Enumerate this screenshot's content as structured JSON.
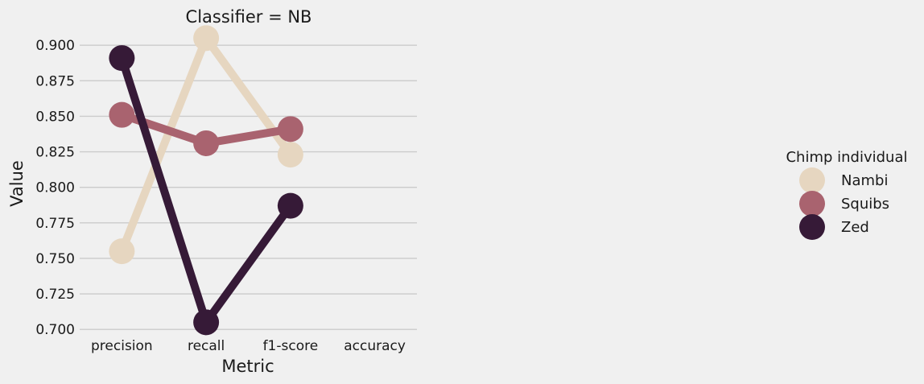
{
  "chart_data": {
    "type": "line",
    "title": "Classifier = NB",
    "xlabel": "Metric",
    "ylabel": "Value",
    "categories": [
      "precision",
      "recall",
      "f1-score",
      "accuracy"
    ],
    "ylim": [
      0.695,
      0.912
    ],
    "yticks": [
      "0.700",
      "0.725",
      "0.750",
      "0.775",
      "0.800",
      "0.825",
      "0.850",
      "0.875",
      "0.900"
    ],
    "grid": true,
    "legend": {
      "title": "Chimp individual",
      "position": "right"
    },
    "series": [
      {
        "name": "Nambi",
        "color": "#e6d6c0",
        "values": [
          0.755,
          0.905,
          0.823,
          null
        ]
      },
      {
        "name": "Squibs",
        "color": "#a9636f",
        "values": [
          0.851,
          0.831,
          0.841,
          null
        ]
      },
      {
        "name": "Zed",
        "color": "#361a37",
        "values": [
          0.891,
          0.705,
          0.787,
          null
        ]
      }
    ]
  }
}
